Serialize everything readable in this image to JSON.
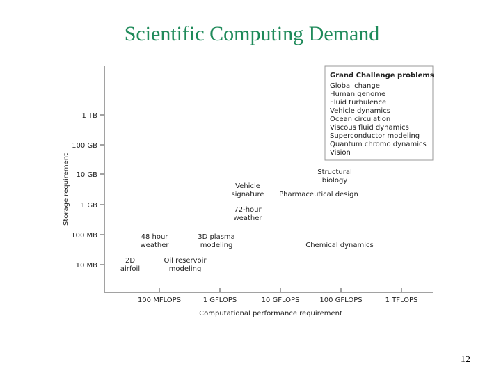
{
  "header": {
    "title": "Scientific Computing Demand"
  },
  "y_axis": {
    "label": "Storage requirement",
    "ticks": [
      "1 TB",
      "100 GB",
      "10 GB",
      "1 GB",
      "100 MB",
      "10 MB"
    ]
  },
  "x_axis": {
    "label": "Computational performance requirement",
    "ticks": [
      "100 MFLOPS",
      "1 GFLOPS",
      "10 GFLOPS",
      "100 GFLOPS",
      "1 TFLOPS"
    ]
  },
  "labels": [
    {
      "lines": [
        "Vehicle",
        "signature"
      ]
    },
    {
      "lines": [
        "72-hour",
        "weather"
      ]
    },
    {
      "lines": [
        "Structural",
        "biology"
      ]
    },
    {
      "lines": [
        "Pharmaceutical design"
      ]
    },
    {
      "lines": [
        "48 hour",
        "weather"
      ]
    },
    {
      "lines": [
        "3D plasma",
        "modeling"
      ]
    },
    {
      "lines": [
        "Chemical dynamics"
      ]
    },
    {
      "lines": [
        "2D",
        "airfoil"
      ]
    },
    {
      "lines": [
        "Oil reservoir",
        "modeling"
      ]
    }
  ],
  "legend": {
    "title": "Grand Challenge problems",
    "items": [
      "Global change",
      "Human genome",
      "Fluid turbulence",
      "Vehicle dynamics",
      "Ocean circulation",
      "Viscous fluid dynamics",
      "Superconductor modeling",
      "Quantum chromo dynamics",
      "Vision"
    ]
  },
  "footer": {
    "page_number": "12"
  }
}
